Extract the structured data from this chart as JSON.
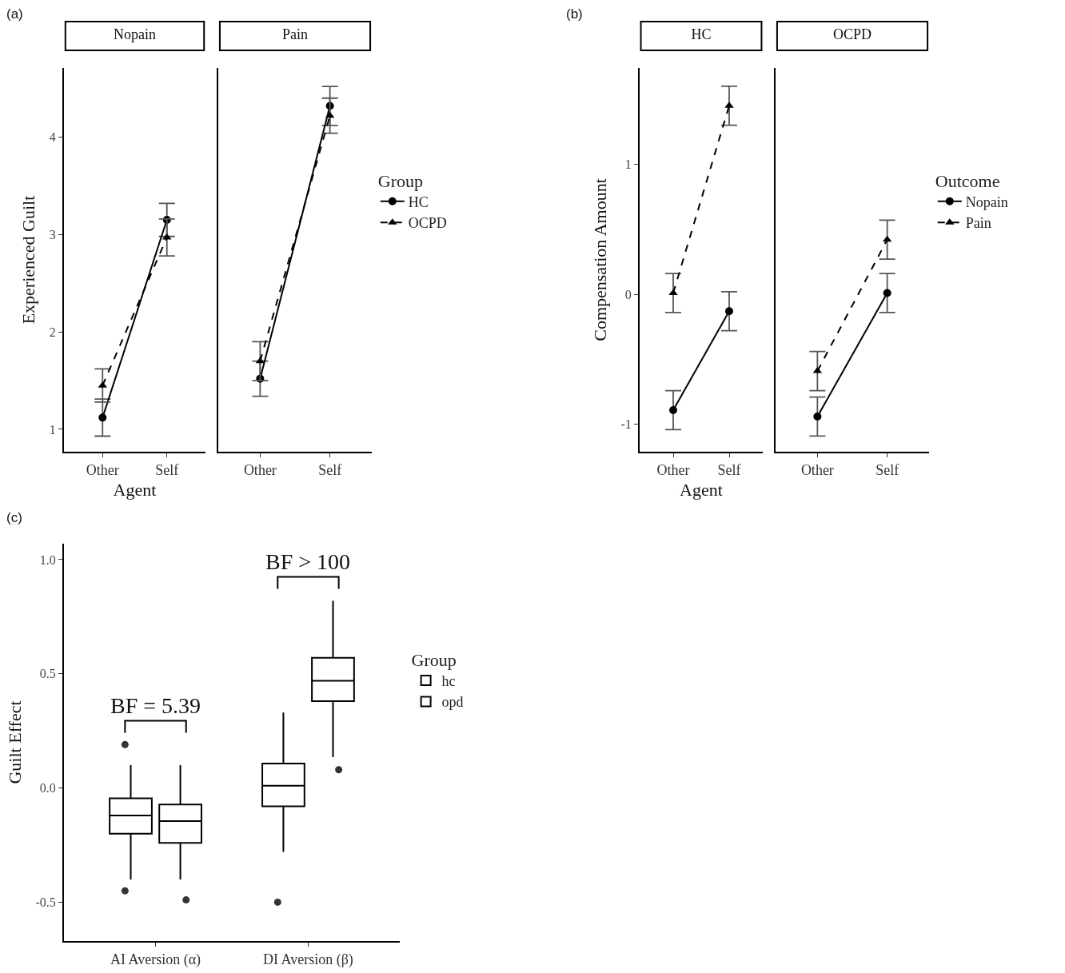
{
  "chart_data": [
    {
      "type": "line",
      "title": "Nopain",
      "annotations": [
        "(a)"
      ],
      "ylabel": "Experienced Guilt",
      "xlabel": "Agent",
      "categories": [
        "Other",
        "Self"
      ],
      "ylim": [
        0.77,
        4.71
      ],
      "yticks": [
        1,
        2,
        3,
        4
      ],
      "series": [
        {
          "color": "#000000",
          "marker": "circle",
          "line_style": "solid",
          "values": [
            1.12,
            3.15
          ],
          "errors": [
            0.19,
            0.17
          ]
        },
        {
          "color": "#000000",
          "marker": "triangle",
          "line_style": "dashed",
          "values": [
            1.45,
            2.97
          ],
          "errors": [
            0.17,
            0.19
          ]
        }
      ]
    },
    {
      "type": "line",
      "title": "Pain",
      "categories": [
        "Other",
        "Self"
      ],
      "ylim": [
        0.77,
        4.71
      ],
      "yticks": [
        1,
        2,
        3,
        4
      ],
      "tick_labels": "x",
      "legend": "right",
      "legend_title": "Group",
      "series": [
        {
          "name": "HC",
          "color": "#000000",
          "marker": "circle",
          "line_style": "solid",
          "values": [
            1.52,
            4.32
          ],
          "errors": [
            0.18,
            0.2
          ]
        },
        {
          "name": "OCPD",
          "color": "#000000",
          "marker": "triangle",
          "line_style": "dashed",
          "values": [
            1.7,
            4.22
          ],
          "errors": [
            0.2,
            0.18
          ]
        }
      ]
    },
    {
      "type": "line",
      "title": "HC",
      "annotations": [
        "(b)"
      ],
      "ylabel": "Compensation Amount",
      "xlabel": "Agent",
      "categories": [
        "Other",
        "Self"
      ],
      "ylim": [
        -1.21,
        1.74
      ],
      "yticks": [
        -1,
        0,
        1
      ],
      "series": [
        {
          "color": "#000000",
          "marker": "circle",
          "line_style": "solid",
          "values": [
            -0.89,
            -0.13
          ],
          "errors": [
            0.15,
            0.15
          ]
        },
        {
          "color": "#000000",
          "marker": "triangle",
          "line_style": "dashed",
          "values": [
            0.01,
            1.45
          ],
          "errors": [
            0.15,
            0.15
          ]
        }
      ]
    },
    {
      "type": "line",
      "title": "OCPD",
      "categories": [
        "Other",
        "Self"
      ],
      "ylim": [
        -1.21,
        1.74
      ],
      "yticks": [
        -1,
        0,
        1
      ],
      "tick_labels": "x",
      "legend": "right",
      "legend_title": "Outcome",
      "series": [
        {
          "name": "Nopain",
          "color": "#000000",
          "marker": "circle",
          "line_style": "solid",
          "values": [
            -0.94,
            0.01
          ],
          "errors": [
            0.15,
            0.15
          ]
        },
        {
          "name": "Pain",
          "color": "#000000",
          "marker": "triangle",
          "line_style": "dashed",
          "values": [
            -0.59,
            0.42
          ],
          "errors": [
            0.15,
            0.15
          ]
        }
      ]
    },
    {
      "type": "box",
      "annotations": [
        "(c)",
        "BF = 5.39",
        "BF > 100"
      ],
      "ylabel": "Guilt Effect",
      "categories": [
        "AI Aversion (α)",
        "DI Aversion (β)"
      ],
      "ylim": [
        -0.67,
        1.07
      ],
      "yticks": [
        -0.5,
        {
          "value": 0,
          "label": "0.0"
        },
        0.5,
        {
          "value": 1,
          "label": "1.0"
        }
      ],
      "legend": "right",
      "legend_title": "Group",
      "series": [
        {
          "name": "hc",
          "color": "#000000",
          "boxes": [
            {
              "low": -0.4,
              "q1": -0.2,
              "median": -0.12,
              "q3": -0.045,
              "high": 0.1,
              "outliers": [
                -0.45,
                0.19
              ]
            },
            {
              "low": -0.28,
              "q1": -0.08,
              "median": 0.01,
              "q3": 0.107,
              "high": 0.33,
              "outliers": [
                -0.5
              ]
            }
          ]
        },
        {
          "name": "opd",
          "color": "#000000",
          "boxes": [
            {
              "low": -0.4,
              "q1": -0.24,
              "median": -0.145,
              "q3": -0.072,
              "high": 0.1,
              "outliers": [
                -0.49
              ]
            },
            {
              "low": 0.135,
              "q1": 0.38,
              "median": 0.47,
              "q3": 0.57,
              "high": 0.82,
              "outliers": [
                0.08
              ]
            }
          ]
        }
      ]
    }
  ]
}
